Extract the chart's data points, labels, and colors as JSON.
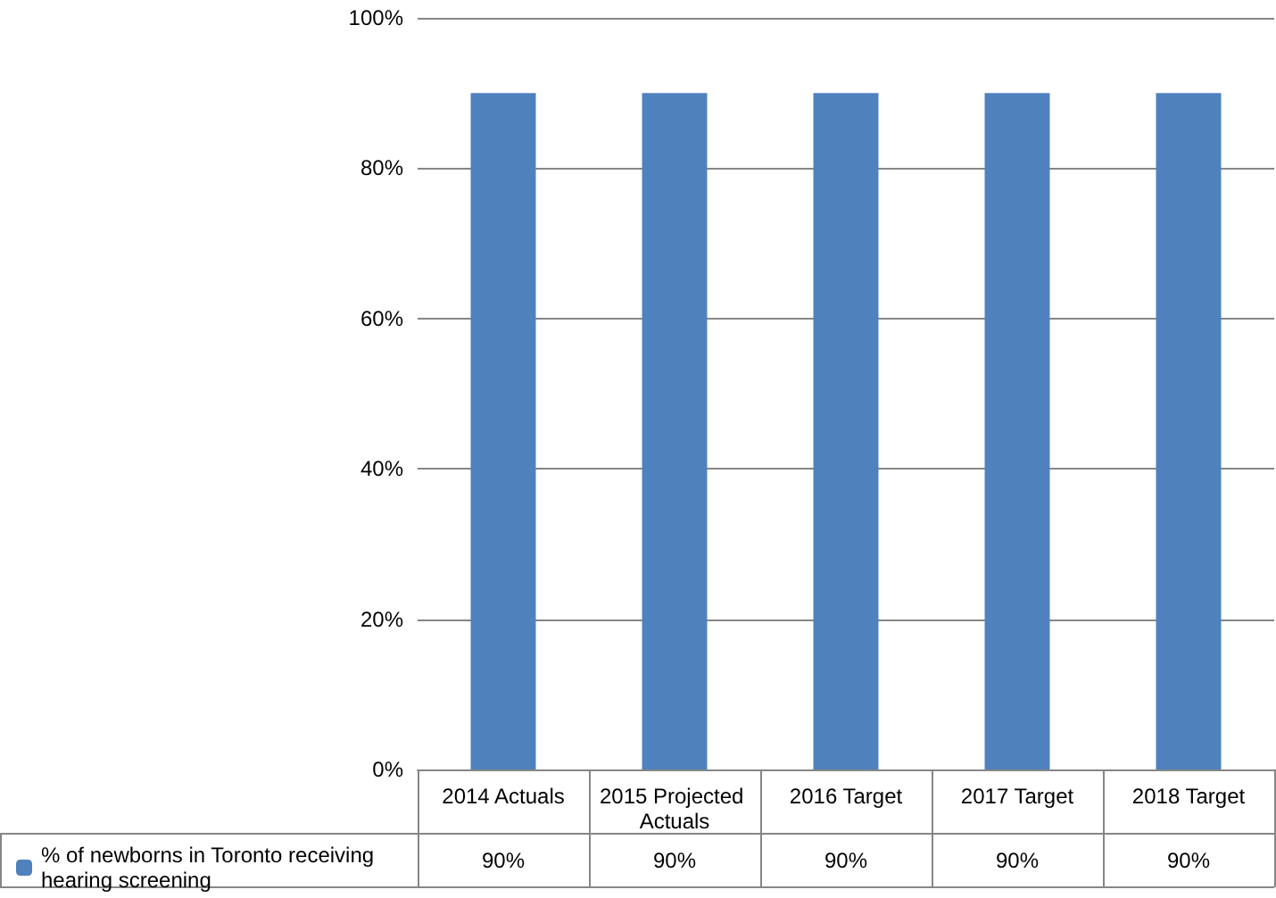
{
  "chart_data": {
    "type": "bar",
    "categories": [
      "2014 Actuals",
      "2015 Projected Actuals",
      "2016 Target",
      "2017 Target",
      "2018 Target"
    ],
    "series": [
      {
        "name": "% of newborns in Toronto receiving hearing screening",
        "color": "#4f81bd",
        "values": [
          90,
          90,
          90,
          90,
          90
        ],
        "value_labels": [
          "90%",
          "90%",
          "90%",
          "90%",
          "90%"
        ]
      }
    ],
    "ylim": [
      0,
      100
    ],
    "yticks": [
      {
        "value": 0,
        "label": "0%"
      },
      {
        "value": 20,
        "label": "20%"
      },
      {
        "value": 40,
        "label": "40%"
      },
      {
        "value": 60,
        "label": "60%"
      },
      {
        "value": 80,
        "label": "80%"
      },
      {
        "value": 100,
        "label": "100%"
      }
    ],
    "grid": "y",
    "legend": "bottom"
  }
}
